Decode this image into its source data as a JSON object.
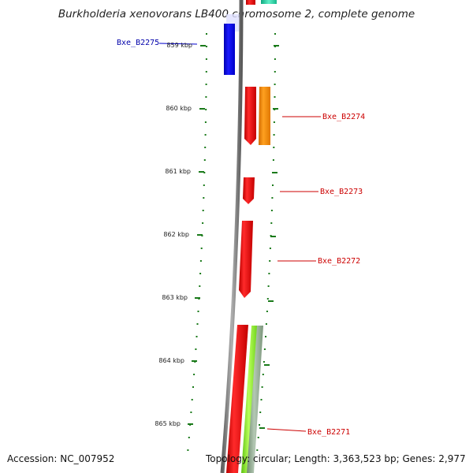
{
  "title": "Burkholderia xenovorans LB400 chromosome 2, complete genome",
  "accession": "Accession: NC_007952",
  "summary": "Topology: circular; Length: 3,363,523 bp; Genes: 2,977",
  "ruler": {
    "unit": "kbp",
    "ticks": [
      {
        "label": "859 kbp"
      },
      {
        "label": "860 kbp"
      },
      {
        "label": "861 kbp"
      },
      {
        "label": "862 kbp"
      },
      {
        "label": "863 kbp"
      },
      {
        "label": "864 kbp"
      },
      {
        "label": "865 kbp"
      }
    ]
  },
  "genes": [
    {
      "id": "Bxe_B2275",
      "strand": "minus",
      "color": "#0000ee",
      "label_color": "#0000aa"
    },
    {
      "id": "Bxe_B2274",
      "strand": "plus",
      "color": "#ee0000",
      "label_color": "#cc0000"
    },
    {
      "id": "Bxe_B2273",
      "strand": "plus",
      "color": "#ee0000",
      "label_color": "#cc0000"
    },
    {
      "id": "Bxe_B2272",
      "strand": "plus",
      "color": "#ee0000",
      "label_color": "#cc0000"
    },
    {
      "id": "Bxe_B2271",
      "strand": "plus",
      "color": "#ee0000",
      "label_color": "#cc0000"
    }
  ],
  "colors": {
    "backbone": "#7a7a7a",
    "tick": "#1a7a1a",
    "orange_feature": "#ff8c00",
    "green_feature": "#7cdc22",
    "gray_feature": "#8fa88f",
    "teal_feature": "#20c99a"
  }
}
